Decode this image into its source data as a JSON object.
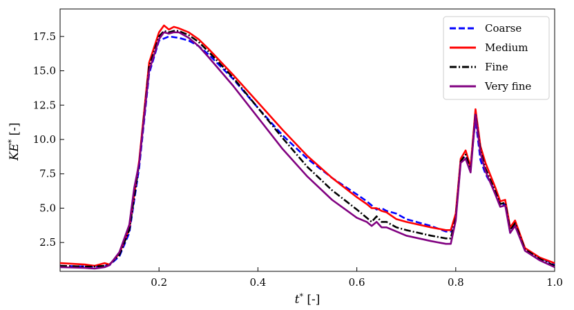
{
  "chart_data": {
    "type": "line",
    "title": "",
    "xlabel": "t* [-]",
    "xlabel_parts": {
      "symbol": "t",
      "sup": "*",
      "unit": " [-]"
    },
    "ylabel": "KE* [-]",
    "ylabel_parts": {
      "symbol": "KE",
      "sup": "*",
      "unit": " [-]"
    },
    "xlim": [
      0.0,
      1.0
    ],
    "ylim": [
      0.4,
      19.5
    ],
    "xticks": [
      0.2,
      0.4,
      0.6,
      0.8,
      1.0
    ],
    "xtick_labels": [
      "0.2",
      "0.4",
      "0.6",
      "0.8",
      "1.0"
    ],
    "yticks": [
      2.5,
      5.0,
      7.5,
      10.0,
      12.5,
      15.0,
      17.5
    ],
    "ytick_labels": [
      "2.5",
      "5.0",
      "7.5",
      "10.0",
      "12.5",
      "15.0",
      "17.5"
    ],
    "grid": false,
    "legend_position": "top-right",
    "series": [
      {
        "name": "Coarse",
        "color": "#0000ff",
        "style": "dashed",
        "x": [
          0.0,
          0.05,
          0.08,
          0.1,
          0.12,
          0.14,
          0.16,
          0.18,
          0.2,
          0.22,
          0.24,
          0.26,
          0.28,
          0.3,
          0.35,
          0.4,
          0.45,
          0.5,
          0.55,
          0.6,
          0.62,
          0.63,
          0.64,
          0.65,
          0.66,
          0.68,
          0.7,
          0.75,
          0.78,
          0.79,
          0.8,
          0.81,
          0.82,
          0.83,
          0.84,
          0.85,
          0.86,
          0.88,
          0.89,
          0.9,
          0.91,
          0.92,
          0.94,
          0.97,
          1.0
        ],
        "y": [
          0.8,
          0.75,
          0.75,
          0.85,
          1.5,
          3.2,
          8.0,
          14.8,
          17.2,
          17.5,
          17.4,
          17.2,
          16.8,
          16.2,
          14.4,
          12.3,
          10.3,
          8.6,
          7.2,
          6.0,
          5.5,
          5.2,
          4.9,
          5.0,
          4.8,
          4.6,
          4.2,
          3.7,
          3.3,
          3.3,
          4.5,
          8.5,
          8.8,
          8.0,
          11.5,
          8.5,
          7.5,
          6.2,
          5.2,
          5.3,
          3.2,
          3.8,
          2.0,
          1.4,
          0.9
        ]
      },
      {
        "name": "Medium",
        "color": "#ff0000",
        "style": "solid",
        "x": [
          0.0,
          0.05,
          0.07,
          0.09,
          0.1,
          0.12,
          0.14,
          0.16,
          0.18,
          0.2,
          0.21,
          0.22,
          0.23,
          0.24,
          0.26,
          0.28,
          0.3,
          0.35,
          0.4,
          0.45,
          0.5,
          0.55,
          0.6,
          0.62,
          0.63,
          0.64,
          0.65,
          0.66,
          0.68,
          0.7,
          0.75,
          0.78,
          0.79,
          0.8,
          0.81,
          0.82,
          0.83,
          0.84,
          0.85,
          0.86,
          0.88,
          0.89,
          0.9,
          0.91,
          0.92,
          0.94,
          0.97,
          1.0
        ],
        "y": [
          1.0,
          0.9,
          0.8,
          1.0,
          0.9,
          1.7,
          3.5,
          8.5,
          15.6,
          17.8,
          18.3,
          18.0,
          18.2,
          18.1,
          17.8,
          17.3,
          16.6,
          14.7,
          12.7,
          10.7,
          8.8,
          7.2,
          5.8,
          5.3,
          5.0,
          5.0,
          4.8,
          4.7,
          4.2,
          4.0,
          3.6,
          3.4,
          3.4,
          4.6,
          8.6,
          9.2,
          8.0,
          12.2,
          9.5,
          8.3,
          6.5,
          5.5,
          5.6,
          3.6,
          4.1,
          2.1,
          1.4,
          1.0
        ]
      },
      {
        "name": "Fine",
        "color": "#000000",
        "style": "dashdot",
        "x": [
          0.0,
          0.05,
          0.07,
          0.09,
          0.1,
          0.12,
          0.14,
          0.16,
          0.18,
          0.2,
          0.21,
          0.22,
          0.23,
          0.24,
          0.26,
          0.28,
          0.3,
          0.35,
          0.4,
          0.45,
          0.5,
          0.55,
          0.6,
          0.62,
          0.63,
          0.64,
          0.65,
          0.66,
          0.68,
          0.7,
          0.75,
          0.78,
          0.79,
          0.8,
          0.81,
          0.82,
          0.83,
          0.84,
          0.85,
          0.86,
          0.88,
          0.89,
          0.9,
          0.91,
          0.92,
          0.94,
          0.97,
          1.0
        ],
        "y": [
          0.8,
          0.75,
          0.75,
          0.8,
          0.9,
          1.6,
          3.4,
          8.3,
          15.3,
          17.5,
          17.9,
          17.8,
          17.9,
          17.9,
          17.6,
          17.1,
          16.4,
          14.5,
          12.3,
          10.1,
          8.0,
          6.3,
          4.9,
          4.3,
          4.0,
          4.4,
          4.0,
          4.0,
          3.6,
          3.4,
          3.0,
          2.8,
          2.8,
          4.3,
          8.4,
          8.9,
          7.8,
          11.9,
          9.2,
          7.9,
          6.2,
          5.3,
          5.4,
          3.4,
          3.9,
          2.0,
          1.3,
          0.8
        ]
      },
      {
        "name": "Very fine",
        "color": "#800080",
        "style": "solid",
        "x": [
          0.0,
          0.05,
          0.07,
          0.09,
          0.1,
          0.12,
          0.14,
          0.15,
          0.16,
          0.18,
          0.2,
          0.21,
          0.22,
          0.23,
          0.24,
          0.26,
          0.28,
          0.3,
          0.35,
          0.4,
          0.45,
          0.5,
          0.55,
          0.6,
          0.62,
          0.63,
          0.64,
          0.65,
          0.66,
          0.68,
          0.7,
          0.75,
          0.78,
          0.79,
          0.8,
          0.81,
          0.82,
          0.83,
          0.84,
          0.85,
          0.86,
          0.88,
          0.89,
          0.9,
          0.91,
          0.92,
          0.94,
          0.97,
          1.0
        ],
        "y": [
          0.7,
          0.65,
          0.6,
          0.7,
          0.85,
          1.8,
          3.8,
          6.5,
          8.3,
          15.0,
          17.3,
          17.8,
          17.7,
          17.8,
          17.8,
          17.4,
          16.8,
          16.0,
          13.9,
          11.6,
          9.3,
          7.3,
          5.6,
          4.3,
          4.0,
          3.7,
          4.0,
          3.6,
          3.6,
          3.3,
          3.0,
          2.6,
          2.4,
          2.4,
          4.1,
          8.3,
          8.6,
          7.6,
          11.8,
          9.0,
          7.7,
          6.0,
          5.1,
          5.2,
          3.2,
          3.7,
          1.9,
          1.2,
          0.7
        ]
      }
    ]
  }
}
